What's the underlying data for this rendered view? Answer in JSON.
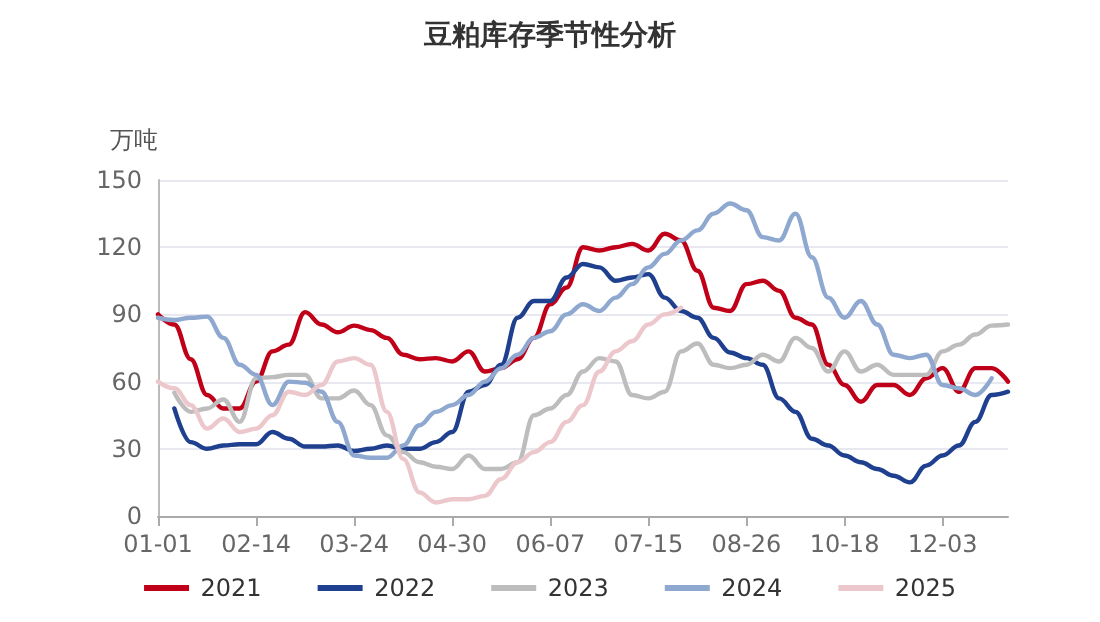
{
  "chart_data": {
    "type": "line",
    "title": "豆粕库存季节性分析",
    "ylabel": "万吨",
    "categories": [
      "01-01",
      null,
      null,
      null,
      null,
      null,
      "02-14",
      null,
      null,
      null,
      null,
      null,
      "03-24",
      null,
      null,
      null,
      null,
      null,
      "04-30",
      null,
      null,
      null,
      null,
      null,
      "06-07",
      null,
      null,
      null,
      null,
      null,
      "07-15",
      null,
      null,
      null,
      null,
      null,
      "08-26",
      null,
      null,
      null,
      null,
      null,
      "10-18",
      null,
      null,
      null,
      null,
      null,
      "12-03",
      null,
      null,
      null,
      null
    ],
    "series": [
      {
        "name": "2021",
        "color": "#c00018",
        "values": [
          90,
          85.5,
          70,
          54,
          48,
          48,
          60,
          73.5,
          76.5,
          91,
          85.5,
          82,
          85,
          83,
          79.5,
          72,
          70,
          70.5,
          69,
          73.5,
          64.5,
          66,
          70,
          79.5,
          94.5,
          102,
          120,
          118.5,
          120,
          121.5,
          118.5,
          126,
          123,
          109.5,
          93,
          91.5,
          103.5,
          105,
          100.5,
          88.5,
          85.5,
          67.5,
          58.5,
          51,
          58.5,
          58.5,
          54,
          61.5,
          66,
          55.5,
          66,
          66,
          60
        ]
      },
      {
        "name": "2022",
        "color": "#1f3f8f",
        "values": [
          null,
          48,
          33,
          30,
          31.5,
          32,
          32,
          37.5,
          34.5,
          31,
          31,
          31.5,
          29,
          30,
          31.5,
          30,
          30,
          33,
          37.5,
          55.5,
          58.5,
          67.5,
          88.5,
          96,
          96,
          106.5,
          112.5,
          111,
          105,
          106.5,
          108,
          97.5,
          91.5,
          88.5,
          79.5,
          73,
          70.5,
          67.5,
          52.5,
          46.5,
          34.5,
          31.5,
          27,
          24,
          21,
          18,
          15,
          22.5,
          27,
          31.5,
          42,
          54,
          55.5
        ]
      },
      {
        "name": "2023",
        "color": "#bdbdbd",
        "values": [
          null,
          55,
          46.5,
          48,
          52,
          42,
          61.5,
          62,
          63,
          63,
          52.5,
          52.5,
          56,
          49.5,
          36,
          28.5,
          24,
          22,
          21,
          27,
          21,
          21,
          24,
          45,
          48,
          54,
          64.5,
          70.5,
          69,
          54,
          52.5,
          55.5,
          73.5,
          77,
          67.5,
          66,
          67.5,
          72,
          69,
          79.5,
          75,
          64.5,
          73.5,
          64.5,
          67.5,
          63,
          63,
          63,
          73.5,
          76.5,
          81,
          85,
          85.5
        ]
      },
      {
        "name": "2024",
        "color": "#8fa8d0",
        "values": [
          88.5,
          87.5,
          88.5,
          89,
          79.5,
          67.5,
          63,
          49.5,
          60,
          59.5,
          55.5,
          42,
          27,
          26,
          26,
          31.5,
          40.5,
          46.5,
          49.5,
          54,
          60,
          66,
          72,
          79.5,
          82.5,
          90,
          94.5,
          91.5,
          97.5,
          103.5,
          111,
          117,
          123,
          127.5,
          135,
          139.5,
          136.5,
          124.5,
          123,
          135,
          115.5,
          97.5,
          88.5,
          96,
          85.5,
          72,
          70.5,
          72,
          58.5,
          57,
          54,
          61.5,
          null
        ]
      },
      {
        "name": "2025",
        "color": "#ecc8cc",
        "values": [
          60,
          57,
          49.5,
          39,
          43.5,
          37.5,
          39,
          45,
          55.5,
          54,
          58.5,
          69,
          70.5,
          67.5,
          46.5,
          25.5,
          10.5,
          6,
          7.5,
          7.5,
          9,
          16.5,
          24,
          28.5,
          33,
          42,
          49.5,
          64.5,
          73.5,
          78,
          85.5,
          90,
          93,
          null,
          null,
          null,
          null,
          null,
          null,
          null,
          null,
          null,
          null,
          null,
          null,
          null,
          null,
          null,
          null,
          null,
          null,
          null,
          null
        ]
      }
    ],
    "ylim": [
      0,
      150
    ],
    "yticks": [
      0,
      30,
      60,
      90,
      120,
      150
    ],
    "grid": "y",
    "legend": "bottom",
    "marker": "none",
    "line_style": "solid"
  }
}
